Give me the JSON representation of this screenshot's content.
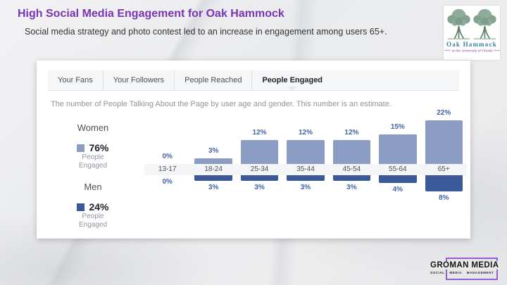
{
  "slide": {
    "title": "High Social Media Engagement for Oak Hammock",
    "subtitle": "Social media strategy and photo contest led to an increase in engagement among users 65+."
  },
  "oak_hammock_logo": {
    "name": "Oak Hammock",
    "tagline": "at the University of Florida"
  },
  "groman_logo": {
    "name": "GROMAN MEDIA",
    "tagline": "SOCIAL MEDIA MANAGEMENT",
    "frame_color": "#945fd4"
  },
  "insights_panel": {
    "tabs": [
      {
        "label": "Your Fans",
        "active": false
      },
      {
        "label": "Your Followers",
        "active": false
      },
      {
        "label": "People Reached",
        "active": false
      },
      {
        "label": "People Engaged",
        "active": true
      }
    ],
    "description": "The number of People Talking About the Page by user age and gender. This number is an estimate.",
    "legend": {
      "women": {
        "label": "Women",
        "value": "76%",
        "sub": [
          "People",
          "Engaged"
        ]
      },
      "men": {
        "label": "Men",
        "value": "24%",
        "sub": [
          "People",
          "Engaged"
        ]
      }
    }
  },
  "chart_data": {
    "type": "bar",
    "title": "People Talking About the Page by user age and gender",
    "categories": [
      "13-17",
      "18-24",
      "25-34",
      "35-44",
      "45-54",
      "55-64",
      "65+"
    ],
    "series": [
      {
        "name": "Women",
        "values": [
          0,
          3,
          12,
          12,
          12,
          15,
          22
        ],
        "color": "#8b9dc3",
        "share_of_total": "76%"
      },
      {
        "name": "Men",
        "values": [
          0,
          3,
          3,
          3,
          3,
          4,
          8
        ],
        "color": "#3b5998",
        "share_of_total": "24%"
      }
    ],
    "value_unit": "%",
    "orientation": "diverging-vertical",
    "legend_position": "left",
    "grid": false
  },
  "colors": {
    "title": "#7a35b2",
    "women_bar": "#8b9dc3",
    "men_bar": "#3b5998",
    "value_label": "#4166a5"
  }
}
